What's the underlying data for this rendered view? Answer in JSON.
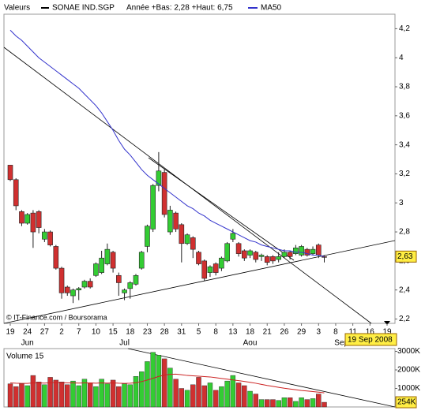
{
  "chart_data": {
    "type": "candlestick",
    "section_label": "Valeurs",
    "title": "SONAE IND.SGP",
    "subtitle": "Année +Bas: 2,28 +Haut: 6,75",
    "source": "© IT-Finance.com / Boursorama",
    "date_label": "19 Sep 2008",
    "categories": [
      "19",
      null,
      null,
      "24",
      null,
      null,
      "27",
      null,
      null,
      "2",
      null,
      null,
      "7",
      null,
      null,
      "10",
      null,
      null,
      "15",
      null,
      null,
      "18",
      null,
      null,
      "23",
      null,
      null,
      "28",
      null,
      null,
      "31",
      null,
      null,
      "5",
      null,
      null,
      "8",
      null,
      null,
      "13",
      null,
      null,
      "18",
      null,
      null,
      "21",
      null,
      null,
      "26",
      null,
      null,
      "29",
      null,
      null,
      "3",
      null,
      null,
      "8",
      null,
      null,
      "11",
      null,
      null,
      "16",
      null,
      null,
      "19"
    ],
    "month_labels": [
      null,
      null,
      null,
      "Jun",
      null,
      null,
      null,
      null,
      null,
      null,
      null,
      null,
      null,
      null,
      null,
      null,
      null,
      null,
      null,
      null,
      "Jul",
      null,
      null,
      null,
      null,
      null,
      null,
      null,
      null,
      null,
      null,
      null,
      null,
      null,
      null,
      null,
      null,
      null,
      null,
      null,
      null,
      null,
      "Aou",
      null,
      null,
      null,
      null,
      null,
      null,
      null,
      null,
      null,
      null,
      null,
      null,
      null,
      null,
      null,
      "Sep",
      null,
      null,
      null,
      null,
      null,
      null,
      null,
      null
    ],
    "open": [
      3.26,
      3.16,
      2.94,
      2.86,
      2.93,
      2.94,
      2.75,
      2.8,
      2.7,
      2.55,
      2.42,
      2.36,
      2.4,
      2.42,
      2.46,
      2.5,
      2.52,
      2.58,
      2.66,
      2.5,
      2.38,
      2.41,
      2.44,
      2.55,
      2.7,
      2.82,
      3.12,
      3.21,
      2.8,
      2.93,
      2.85,
      2.72,
      2.76,
      2.66,
      2.6,
      2.52,
      2.58,
      2.55,
      2.6,
      2.75,
      2.72,
      2.67,
      2.64,
      2.66,
      2.63,
      2.63,
      2.63,
      2.61,
      2.63,
      2.66,
      2.65,
      2.64,
      2.68,
      2.65,
      2.71,
      2.63,
      null,
      null,
      null,
      null,
      null,
      null,
      null,
      null,
      null,
      null,
      null
    ],
    "high": [
      3.26,
      3.17,
      2.95,
      2.93,
      2.95,
      2.95,
      2.82,
      2.81,
      2.71,
      2.56,
      2.43,
      2.41,
      2.42,
      2.47,
      2.48,
      2.59,
      2.67,
      2.72,
      2.67,
      2.52,
      2.41,
      2.46,
      2.51,
      2.67,
      2.85,
      3.13,
      3.35,
      3.23,
      2.98,
      2.94,
      2.86,
      2.79,
      2.77,
      2.67,
      2.61,
      2.57,
      2.59,
      2.63,
      2.73,
      2.82,
      2.73,
      2.68,
      2.68,
      2.67,
      2.65,
      2.64,
      2.64,
      2.66,
      2.68,
      2.67,
      2.71,
      2.71,
      2.69,
      2.7,
      2.72,
      2.64,
      null,
      null,
      null,
      null,
      null,
      null,
      null,
      null,
      null,
      null,
      null
    ],
    "low": [
      3.15,
      2.95,
      2.84,
      2.85,
      2.69,
      2.79,
      2.73,
      2.7,
      2.54,
      2.34,
      2.36,
      2.31,
      2.33,
      2.41,
      2.41,
      2.49,
      2.51,
      2.57,
      2.52,
      2.36,
      2.33,
      2.34,
      2.43,
      2.54,
      2.66,
      2.8,
      3.08,
      2.9,
      2.78,
      2.8,
      2.59,
      2.71,
      2.62,
      2.57,
      2.46,
      2.49,
      2.5,
      2.53,
      2.59,
      2.73,
      2.63,
      2.6,
      2.62,
      2.59,
      2.6,
      2.57,
      2.58,
      2.59,
      2.62,
      2.61,
      2.64,
      2.63,
      2.63,
      2.64,
      2.62,
      2.59,
      null,
      null,
      null,
      null,
      null,
      null,
      null,
      null,
      null,
      null,
      null
    ],
    "close": [
      3.16,
      2.98,
      2.86,
      2.92,
      2.8,
      2.83,
      2.8,
      2.71,
      2.55,
      2.38,
      2.38,
      2.4,
      2.41,
      2.46,
      2.42,
      2.58,
      2.62,
      2.68,
      2.55,
      2.45,
      2.4,
      2.45,
      2.5,
      2.66,
      2.84,
      3.12,
      3.22,
      2.92,
      2.95,
      2.82,
      2.72,
      2.78,
      2.68,
      2.58,
      2.48,
      2.56,
      2.52,
      2.62,
      2.72,
      2.79,
      2.65,
      2.62,
      2.67,
      2.61,
      2.64,
      2.59,
      2.6,
      2.63,
      2.66,
      2.63,
      2.69,
      2.7,
      2.64,
      2.68,
      2.64,
      2.63,
      null,
      null,
      null,
      null,
      null,
      null,
      null,
      null,
      null,
      null,
      null
    ],
    "up_color": "#33cc33",
    "down_color": "#d03030",
    "series": [
      {
        "name": "MA50",
        "color": "#3333cc",
        "values": [
          4.19,
          4.15,
          4.12,
          4.08,
          4.04,
          4.0,
          3.97,
          3.94,
          3.91,
          3.88,
          3.85,
          3.82,
          3.79,
          3.75,
          3.71,
          3.67,
          3.62,
          3.56,
          3.5,
          3.43,
          3.37,
          3.33,
          3.28,
          3.23,
          3.19,
          3.16,
          3.13,
          3.1,
          3.07,
          3.04,
          3.01,
          2.98,
          2.96,
          2.93,
          2.91,
          2.88,
          2.86,
          2.84,
          2.82,
          2.8,
          2.78,
          2.76,
          2.74,
          2.73,
          2.71,
          2.7,
          2.69,
          2.68,
          2.67,
          2.67,
          2.66,
          2.66,
          2.65,
          2.64,
          2.64,
          2.63,
          null,
          null,
          null,
          null,
          null,
          null,
          null,
          null,
          null,
          null,
          null
        ]
      }
    ],
    "ylim": [
      2.17,
      4.3
    ],
    "yticks": [
      {
        "value": 2.2,
        "label": "2,2"
      },
      {
        "value": 2.4,
        "label": "2,4"
      },
      {
        "value": 2.6,
        "label": "2,6"
      },
      {
        "value": 2.8,
        "label": "2,8"
      },
      3,
      {
        "value": 3.2,
        "label": "3,2"
      },
      {
        "value": 3.4,
        "label": "3,4"
      },
      {
        "value": 3.6,
        "label": "3,6"
      },
      {
        "value": 3.8,
        "label": "3,8"
      },
      4,
      {
        "value": 4.2,
        "label": "4,2"
      }
    ],
    "last_value": 2.63,
    "last_value_label": "2,63",
    "volume": {
      "title": "Volume 15",
      "values": [
        1250000,
        1100000,
        1250000,
        1150000,
        1700000,
        1350000,
        1200000,
        1600000,
        1450000,
        1350000,
        1200000,
        1400000,
        1150000,
        1500000,
        1300000,
        1100000,
        1500000,
        1250000,
        1450000,
        1100000,
        1250000,
        1200000,
        1650000,
        1900000,
        2450000,
        2950000,
        2800000,
        2600000,
        2100000,
        1500000,
        1000000,
        900000,
        1200000,
        1600000,
        1150000,
        1300000,
        900000,
        1100000,
        1400000,
        1700000,
        1300000,
        1150000,
        850000,
        700000,
        400000,
        400000,
        400000,
        350000,
        500000,
        500000,
        300000,
        500000,
        400000,
        450000,
        700000,
        254000,
        null,
        null,
        null,
        null,
        null,
        null,
        null,
        null,
        null,
        null,
        null
      ],
      "ma_color": "#cc2222",
      "ma_values": [
        1300000,
        1280000,
        1270000,
        1270000,
        1300000,
        1300000,
        1290000,
        1310000,
        1320000,
        1310000,
        1300000,
        1300000,
        1290000,
        1300000,
        1300000,
        1280000,
        1300000,
        1290000,
        1300000,
        1280000,
        1270000,
        1280000,
        1310000,
        1370000,
        1450000,
        1550000,
        1650000,
        1720000,
        1760000,
        1770000,
        1740000,
        1700000,
        1680000,
        1660000,
        1640000,
        1620000,
        1580000,
        1540000,
        1500000,
        1460000,
        1420000,
        1380000,
        1330000,
        1280000,
        1220000,
        1160000,
        1110000,
        1060000,
        1010000,
        970000,
        930000,
        890000,
        860000,
        830000,
        800000,
        760000,
        null,
        null,
        null,
        null,
        null,
        null,
        null,
        null,
        null,
        null,
        null
      ],
      "ylim": [
        0,
        3150000
      ],
      "yticks": [
        {
          "value": 1000000,
          "label": "1000K"
        },
        {
          "value": 2000000,
          "label": "2000K"
        },
        {
          "value": 3000000,
          "label": "3000K"
        }
      ],
      "last_value": 254000,
      "last_value_label": "254K"
    }
  }
}
